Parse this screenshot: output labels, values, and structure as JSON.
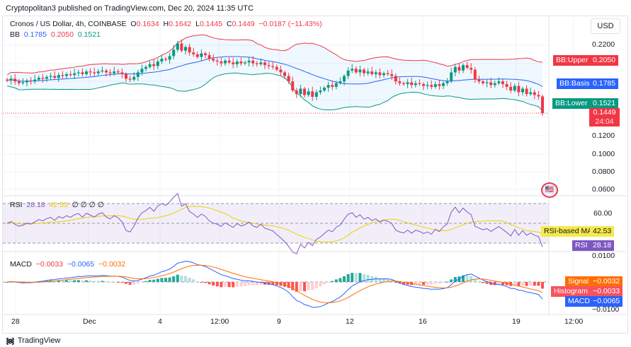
{
  "header": {
    "published": "Cryptopolitan3 published on TradingView.com, Dec 20, 2024 11:35 UTC"
  },
  "legend": {
    "symbol": "Cronos / US Dollar, 4h, COINBASE",
    "o_label": "O",
    "o": "0.1634",
    "h_label": "H",
    "h": "0.1642",
    "l_label": "L",
    "l": "0.1445",
    "c_label": "C",
    "c": "0.1449",
    "change": "−0.0187 (−11.43%)"
  },
  "bb": {
    "label": "BB",
    "basis": "0.1785",
    "upper": "0.2050",
    "lower": "0.1521",
    "tag_upper": "BB:Upper",
    "tag_basis": "BB:Basis",
    "tag_lower": "BB:Lower"
  },
  "price_tag": {
    "value": "0.1449",
    "countdown": "24:04"
  },
  "currency": "USD",
  "rsi": {
    "label": "RSI",
    "value": "28.18",
    "ma": "42.53",
    "extra": "∅ ∅ ∅ ∅",
    "tag_ma": "RSI-based MA",
    "tag_rsi": "RSI"
  },
  "macd": {
    "label": "MACD",
    "hist": "−0.0033",
    "macd": "−0.0065",
    "signal": "−0.0032",
    "tag_signal": "Signal",
    "tag_hist": "Histogram",
    "tag_macd": "MACD"
  },
  "footer": {
    "brand": "TradingView"
  },
  "colors": {
    "up": "#089981",
    "down": "#f23645",
    "bb_upper": "#f23645",
    "bb_basis": "#2962ff",
    "bb_lower": "#089981",
    "rsi": "#7e57c2",
    "rsi_ma": "#e6d400",
    "signal": "#ff6d00",
    "macd": "#2962ff"
  },
  "chart_data": {
    "type": "candlestick",
    "timeframe": "4h",
    "price_axis": {
      "ticks": [
        "0.2200",
        "0.1200",
        "0.1000",
        "0.0800",
        "0.0600"
      ],
      "range": [
        0.055,
        0.235
      ]
    },
    "rsi_axis": {
      "ticks": [
        "60.00",
        "20.00"
      ],
      "bands": [
        30,
        50,
        70
      ]
    },
    "macd_axis": {
      "ticks": [
        "0.0100",
        "−0.0100"
      ]
    },
    "time_ticks": [
      "28",
      "Dec",
      "4",
      "12:00",
      "9",
      "12",
      "16",
      "19",
      "12:00"
    ],
    "closes": [
      0.181,
      0.183,
      0.18,
      0.178,
      0.179,
      0.181,
      0.18,
      0.182,
      0.184,
      0.183,
      0.185,
      0.186,
      0.184,
      0.187,
      0.186,
      0.188,
      0.187,
      0.189,
      0.19,
      0.188,
      0.191,
      0.19,
      0.189,
      0.191,
      0.192,
      0.19,
      0.189,
      0.191,
      0.19,
      0.188,
      0.183,
      0.182,
      0.185,
      0.19,
      0.194,
      0.196,
      0.199,
      0.197,
      0.202,
      0.205,
      0.204,
      0.208,
      0.215,
      0.222,
      0.214,
      0.218,
      0.212,
      0.21,
      0.207,
      0.211,
      0.209,
      0.205,
      0.203,
      0.202,
      0.2,
      0.203,
      0.201,
      0.199,
      0.202,
      0.2,
      0.201,
      0.203,
      0.2,
      0.199,
      0.201,
      0.198,
      0.197,
      0.196,
      0.193,
      0.19,
      0.186,
      0.18,
      0.17,
      0.166,
      0.172,
      0.165,
      0.169,
      0.163,
      0.168,
      0.17,
      0.173,
      0.176,
      0.174,
      0.178,
      0.18,
      0.186,
      0.192,
      0.194,
      0.19,
      0.193,
      0.189,
      0.191,
      0.188,
      0.19,
      0.187,
      0.189,
      0.188,
      0.186,
      0.18,
      0.178,
      0.177,
      0.179,
      0.176,
      0.178,
      0.177,
      0.175,
      0.176,
      0.174,
      0.177,
      0.175,
      0.178,
      0.18,
      0.19,
      0.196,
      0.192,
      0.198,
      0.195,
      0.193,
      0.182,
      0.18,
      0.178,
      0.179,
      0.176,
      0.178,
      0.18,
      0.177,
      0.174,
      0.17,
      0.175,
      0.168,
      0.172,
      0.166,
      0.168,
      0.165,
      0.1634,
      0.1449
    ]
  }
}
